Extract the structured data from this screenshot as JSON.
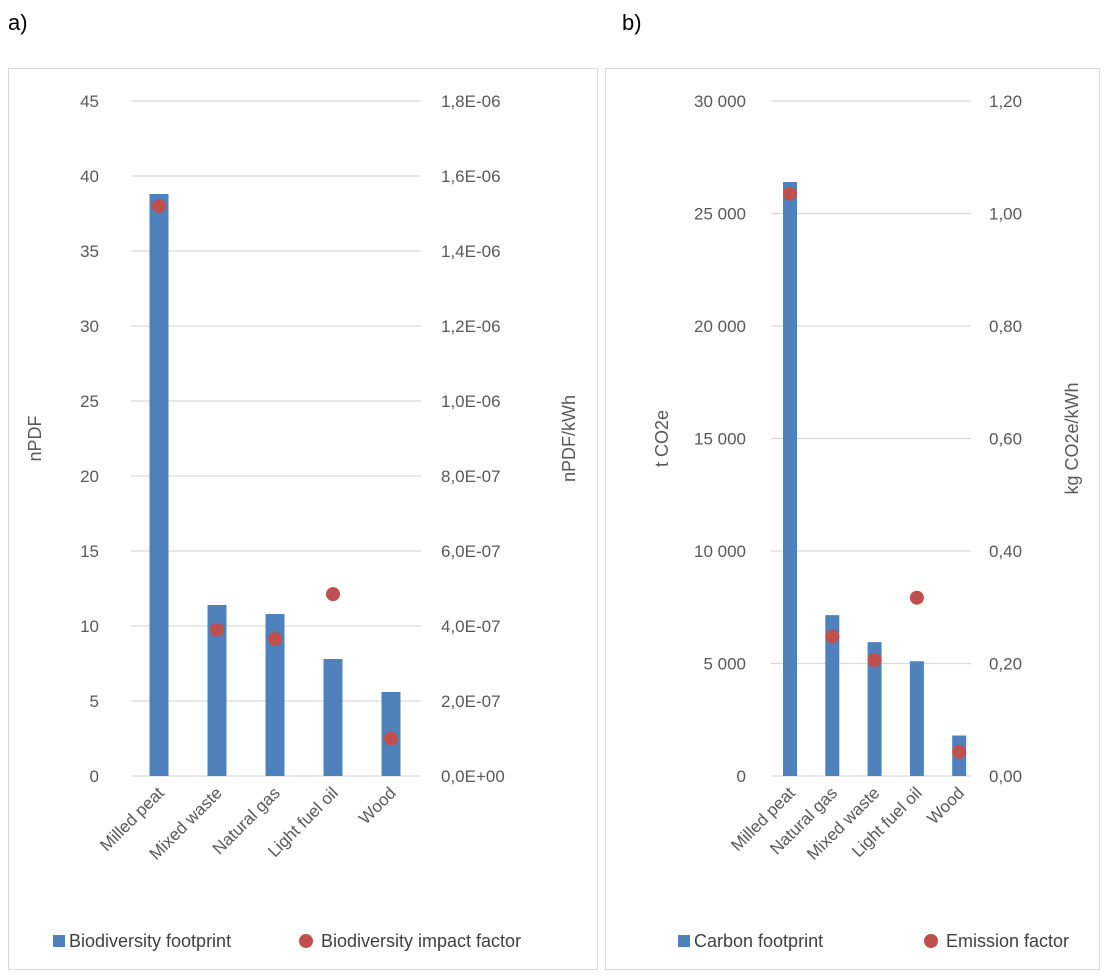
{
  "panels": {
    "a": {
      "letter": "a)"
    },
    "b": {
      "letter": "b)"
    }
  },
  "colors": {
    "bar": "#4f81bd",
    "dot": "#c0504d",
    "grid": "#d9d9d9"
  },
  "chart_data": [
    {
      "type": "bar",
      "categories": [
        "Milled peat",
        "Mixed waste",
        "Natural gas",
        "Light fuel oil",
        "Wood"
      ],
      "series": [
        {
          "name": "Biodiversity footprint",
          "kind": "bar",
          "axis": "left",
          "values": [
            38.8,
            11.4,
            10.8,
            7.8,
            5.6
          ]
        },
        {
          "name": "Biodiversity impact factor",
          "kind": "marker",
          "axis": "right",
          "values": [
            1.52e-06,
            3.9e-07,
            3.65e-07,
            4.85e-07,
            1e-07
          ]
        }
      ],
      "ylabel": "nPDF",
      "y2label": "nPDF/kWh",
      "ylim": [
        0,
        45
      ],
      "y2lim": [
        0,
        1.8e-06
      ],
      "yticks": [
        "0",
        "5",
        "10",
        "15",
        "20",
        "25",
        "30",
        "35",
        "40",
        "45"
      ],
      "y2ticks": [
        "0,0E+00",
        "2,0E-07",
        "4,0E-07",
        "6,0E-07",
        "8,0E-07",
        "1,0E-06",
        "1,2E-06",
        "1,4E-06",
        "1,6E-06",
        "1,8E-06"
      ],
      "grid": true,
      "legend": "bottom"
    },
    {
      "type": "bar",
      "categories": [
        "Milled peat",
        "Natural gas",
        "Mixed waste",
        "Light fuel oil",
        "Wood"
      ],
      "series": [
        {
          "name": "Carbon footprint",
          "kind": "bar",
          "axis": "left",
          "values": [
            26400,
            7150,
            5950,
            5100,
            1800
          ]
        },
        {
          "name": "Emission factor",
          "kind": "marker",
          "axis": "right",
          "values": [
            1.035,
            0.248,
            0.206,
            0.317,
            0.043
          ]
        }
      ],
      "ylabel": "t CO2e",
      "y2label": "kg CO2e/kWh",
      "ylim": [
        0,
        30000
      ],
      "y2lim": [
        0,
        1.2
      ],
      "yticks": [
        "0",
        "5 000",
        "10 000",
        "15 000",
        "20 000",
        "25 000",
        "30 000"
      ],
      "y2ticks": [
        "0,00",
        "0,20",
        "0,40",
        "0,60",
        "0,80",
        "1,00",
        "1,20"
      ],
      "grid": true,
      "legend": "bottom"
    }
  ]
}
